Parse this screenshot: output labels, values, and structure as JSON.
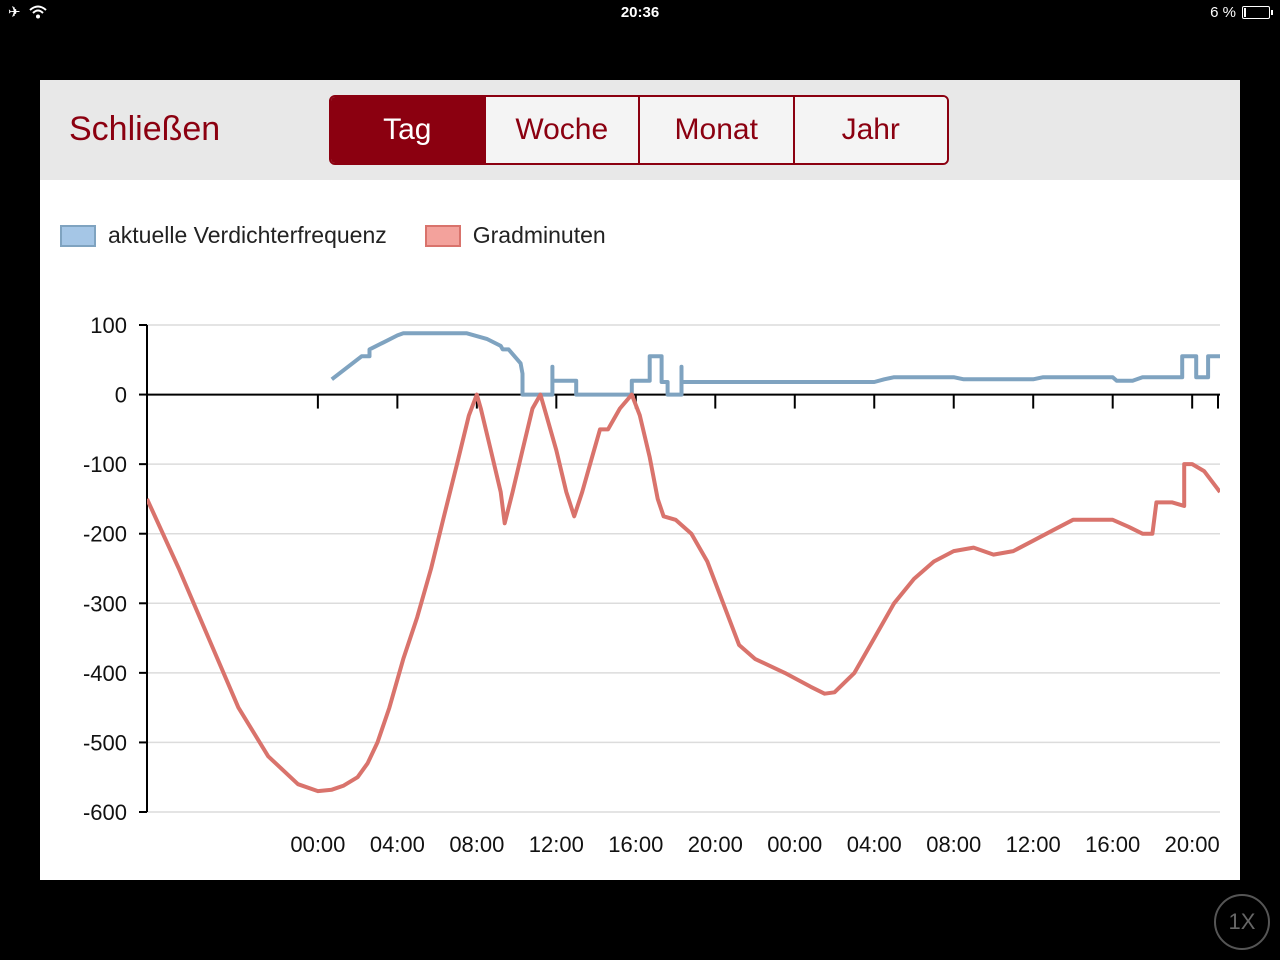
{
  "status_bar": {
    "time": "20:36",
    "battery": "6 %",
    "icons": [
      "airplane-icon",
      "wifi-icon",
      "battery-icon"
    ]
  },
  "toolbar": {
    "close_label": "Schließen",
    "tabs": [
      {
        "label": "Tag",
        "active": true
      },
      {
        "label": "Woche",
        "active": false
      },
      {
        "label": "Monat",
        "active": false
      },
      {
        "label": "Jahr",
        "active": false
      }
    ]
  },
  "zoom_badge": "1X",
  "colors": {
    "accent": "#8b0010",
    "series_blue": "#7fa3c0",
    "series_red": "#d9736c",
    "legend_blue": "#a5c6e6",
    "legend_red": "#f3a29c"
  },
  "chart_data": {
    "type": "line",
    "title": "",
    "xlabel": "",
    "ylabel": "",
    "ylim": [
      -600,
      100
    ],
    "yticks": [
      "100",
      "0",
      "-100",
      "-200",
      "-300",
      "-400",
      "-500",
      "-600"
    ],
    "x_unit": "hours from first 00:00 tick",
    "xlim": [
      -8.6,
      45.4
    ],
    "xticks": [
      {
        "x": 0,
        "label": "00:00"
      },
      {
        "x": 4,
        "label": "04:00"
      },
      {
        "x": 8,
        "label": "08:00"
      },
      {
        "x": 12,
        "label": "12:00"
      },
      {
        "x": 16,
        "label": "16:00"
      },
      {
        "x": 20,
        "label": "20:00"
      },
      {
        "x": 24,
        "label": "00:00"
      },
      {
        "x": 28,
        "label": "04:00"
      },
      {
        "x": 32,
        "label": "08:00"
      },
      {
        "x": 36,
        "label": "12:00"
      },
      {
        "x": 40,
        "label": "16:00"
      },
      {
        "x": 44,
        "label": "20:00"
      }
    ],
    "legend": "top-left",
    "grid": true,
    "series": [
      {
        "name": "aktuelle Verdichterfrequenz",
        "color": "#7fa3c0",
        "points": [
          [
            0.7,
            22
          ],
          [
            2.2,
            55
          ],
          [
            2.6,
            55
          ],
          [
            2.6,
            65
          ],
          [
            3.3,
            75
          ],
          [
            4.0,
            85
          ],
          [
            4.3,
            88
          ],
          [
            7.5,
            88
          ],
          [
            8.5,
            80
          ],
          [
            9.2,
            70
          ],
          [
            9.3,
            65
          ],
          [
            9.6,
            65
          ],
          [
            10.2,
            45
          ],
          [
            10.3,
            30
          ],
          [
            10.3,
            0
          ],
          [
            11.8,
            0
          ],
          [
            11.8,
            40
          ],
          [
            11.8,
            20
          ],
          [
            13.0,
            20
          ],
          [
            13.0,
            0
          ],
          [
            15.8,
            0
          ],
          [
            15.8,
            20
          ],
          [
            16.7,
            20
          ],
          [
            16.7,
            55
          ],
          [
            17.3,
            55
          ],
          [
            17.3,
            18
          ],
          [
            17.6,
            18
          ],
          [
            17.6,
            0
          ],
          [
            18.3,
            0
          ],
          [
            18.3,
            40
          ],
          [
            18.3,
            18
          ],
          [
            28.0,
            18
          ],
          [
            28.5,
            22
          ],
          [
            29.0,
            25
          ],
          [
            30.0,
            25
          ],
          [
            32.0,
            25
          ],
          [
            32.5,
            22
          ],
          [
            36.0,
            22
          ],
          [
            36.5,
            25
          ],
          [
            40.0,
            25
          ],
          [
            40.2,
            20
          ],
          [
            41.0,
            20
          ],
          [
            41.5,
            25
          ],
          [
            43.5,
            25
          ],
          [
            43.5,
            55
          ],
          [
            44.2,
            55
          ],
          [
            44.2,
            25
          ],
          [
            44.8,
            25
          ],
          [
            44.8,
            55
          ],
          [
            45.4,
            55
          ]
        ]
      },
      {
        "name": "Gradminuten",
        "color": "#d9736c",
        "points": [
          [
            -8.6,
            -150
          ],
          [
            -7.0,
            -250
          ],
          [
            -5.5,
            -350
          ],
          [
            -4.0,
            -450
          ],
          [
            -2.5,
            -520
          ],
          [
            -1.0,
            -560
          ],
          [
            0.0,
            -570
          ],
          [
            0.7,
            -568
          ],
          [
            1.3,
            -562
          ],
          [
            2.0,
            -550
          ],
          [
            2.5,
            -530
          ],
          [
            3.0,
            -500
          ],
          [
            3.6,
            -450
          ],
          [
            4.3,
            -380
          ],
          [
            5.0,
            -320
          ],
          [
            5.7,
            -250
          ],
          [
            6.3,
            -180
          ],
          [
            7.0,
            -100
          ],
          [
            7.6,
            -30
          ],
          [
            8.0,
            0
          ],
          [
            8.2,
            -20
          ],
          [
            8.7,
            -80
          ],
          [
            9.2,
            -140
          ],
          [
            9.4,
            -185
          ],
          [
            9.8,
            -140
          ],
          [
            10.3,
            -80
          ],
          [
            10.8,
            -20
          ],
          [
            11.2,
            0
          ],
          [
            11.5,
            -30
          ],
          [
            12.0,
            -80
          ],
          [
            12.5,
            -140
          ],
          [
            12.9,
            -175
          ],
          [
            13.3,
            -140
          ],
          [
            13.7,
            -100
          ],
          [
            14.2,
            -50
          ],
          [
            14.6,
            -50
          ],
          [
            15.2,
            -20
          ],
          [
            15.8,
            0
          ],
          [
            16.2,
            -30
          ],
          [
            16.7,
            -90
          ],
          [
            17.1,
            -150
          ],
          [
            17.4,
            -175
          ],
          [
            18.0,
            -180
          ],
          [
            18.8,
            -200
          ],
          [
            19.6,
            -240
          ],
          [
            20.4,
            -300
          ],
          [
            21.2,
            -360
          ],
          [
            22.0,
            -380
          ],
          [
            23.5,
            -400
          ],
          [
            24.8,
            -420
          ],
          [
            25.5,
            -430
          ],
          [
            26.0,
            -428
          ],
          [
            27.0,
            -400
          ],
          [
            28.0,
            -350
          ],
          [
            29.0,
            -300
          ],
          [
            30.0,
            -265
          ],
          [
            31.0,
            -240
          ],
          [
            32.0,
            -225
          ],
          [
            33.0,
            -220
          ],
          [
            34.0,
            -230
          ],
          [
            35.0,
            -225
          ],
          [
            36.0,
            -210
          ],
          [
            37.0,
            -195
          ],
          [
            38.0,
            -180
          ],
          [
            39.0,
            -180
          ],
          [
            40.0,
            -180
          ],
          [
            40.8,
            -190
          ],
          [
            41.5,
            -200
          ],
          [
            42.0,
            -200
          ],
          [
            42.2,
            -155
          ],
          [
            43.0,
            -155
          ],
          [
            43.6,
            -160
          ],
          [
            43.6,
            -100
          ],
          [
            44.0,
            -100
          ],
          [
            44.6,
            -110
          ],
          [
            45.4,
            -140
          ]
        ]
      }
    ]
  }
}
